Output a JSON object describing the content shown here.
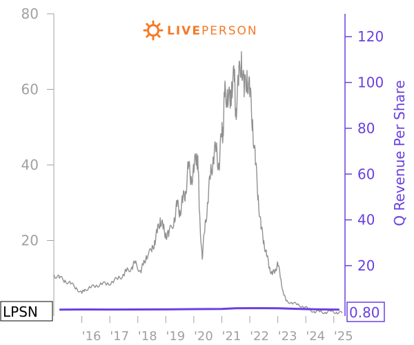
{
  "logo": {
    "brand_light": "LIVE",
    "brand_bold": "PERSON",
    "color": "#f47a28"
  },
  "ticker": "LPSN",
  "revenue_value_label": "0.80",
  "colors": {
    "price_line": "#909090",
    "revenue_line": "#6a3fe0",
    "left_axis": "#a0a0a0",
    "right_axis": "#6a3fe0"
  },
  "chart_data": {
    "type": "line",
    "ylabel_left": "",
    "ylabel_right": "Q Revenue Per Share",
    "xlabel": "",
    "x_range": [
      2015.0,
      2025.4
    ],
    "ylim_left": [
      0,
      80
    ],
    "ylim_right": [
      -2,
      130
    ],
    "yticks_left": [
      20,
      40,
      60,
      80
    ],
    "yticks_right": [
      20,
      40,
      60,
      80,
      100,
      120
    ],
    "xticks": [
      {
        "label": "'16",
        "x": 2016
      },
      {
        "label": "'17",
        "x": 2017
      },
      {
        "label": "'18",
        "x": 2018
      },
      {
        "label": "'19",
        "x": 2019
      },
      {
        "label": "'20",
        "x": 2020
      },
      {
        "label": "'21",
        "x": 2021
      },
      {
        "label": "'22",
        "x": 2022
      },
      {
        "label": "'23",
        "x": 2023
      },
      {
        "label": "'24",
        "x": 2024
      },
      {
        "label": "'25",
        "x": 2025
      }
    ],
    "grid": false,
    "series": [
      {
        "axis": "left",
        "x": [
          2015.0,
          2015.2,
          2015.4,
          2015.6,
          2015.8,
          2016.0,
          2016.1,
          2016.3,
          2016.5,
          2016.7,
          2016.9,
          2017.1,
          2017.3,
          2017.5,
          2017.6,
          2017.8,
          2017.9,
          2018.1,
          2018.2,
          2018.3,
          2018.5,
          2018.6,
          2018.7,
          2018.8,
          2018.9,
          2019.0,
          2019.1,
          2019.3,
          2019.4,
          2019.5,
          2019.6,
          2019.7,
          2019.8,
          2019.9,
          2020.0,
          2020.1,
          2020.15,
          2020.2,
          2020.3,
          2020.4,
          2020.5,
          2020.6,
          2020.7,
          2020.8,
          2020.9,
          2021.0,
          2021.05,
          2021.1,
          2021.2,
          2021.3,
          2021.35,
          2021.45,
          2021.5,
          2021.6,
          2021.7,
          2021.8,
          2021.9,
          2022.0,
          2022.1,
          2022.2,
          2022.3,
          2022.4,
          2022.5,
          2022.6,
          2022.7,
          2022.8,
          2022.9,
          2023.0,
          2023.1,
          2023.2,
          2023.3,
          2023.5,
          2023.7,
          2023.9,
          2024.1,
          2024.3,
          2024.5,
          2024.7,
          2024.9,
          2025.1,
          2025.3
        ],
        "values": [
          11,
          10,
          9.5,
          8.5,
          7.5,
          6,
          7,
          7.5,
          8,
          8.5,
          8.5,
          9,
          10,
          11,
          12,
          13,
          14,
          12,
          13.5,
          16,
          17,
          20,
          22,
          26,
          23,
          22,
          21,
          26,
          29,
          28,
          30,
          33,
          39,
          37,
          38,
          43,
          40,
          28,
          15,
          24,
          30,
          38,
          42,
          44,
          40,
          48,
          50,
          58,
          60,
          55,
          62,
          62,
          55,
          61,
          70,
          58,
          65,
          58,
          52,
          40,
          32,
          23,
          20,
          16,
          13,
          11,
          12,
          14,
          10,
          6,
          4,
          3.5,
          3,
          2.5,
          1.8,
          1.2,
          1.1,
          1.0,
          1.2,
          1.0,
          0.8
        ]
      },
      {
        "axis": "right",
        "name": "Q Revenue Per Share",
        "x": [
          2015.2,
          2016.0,
          2017.0,
          2018.0,
          2019.0,
          2020.0,
          2021.0,
          2021.5,
          2022.0,
          2022.5,
          2023.0,
          2023.5,
          2024.0,
          2024.5,
          2025.2
        ],
        "values": [
          0.8,
          0.85,
          0.82,
          0.85,
          0.9,
          1.0,
          1.1,
          1.4,
          1.45,
          1.45,
          1.4,
          1.2,
          1.0,
          0.9,
          0.8
        ]
      }
    ]
  }
}
